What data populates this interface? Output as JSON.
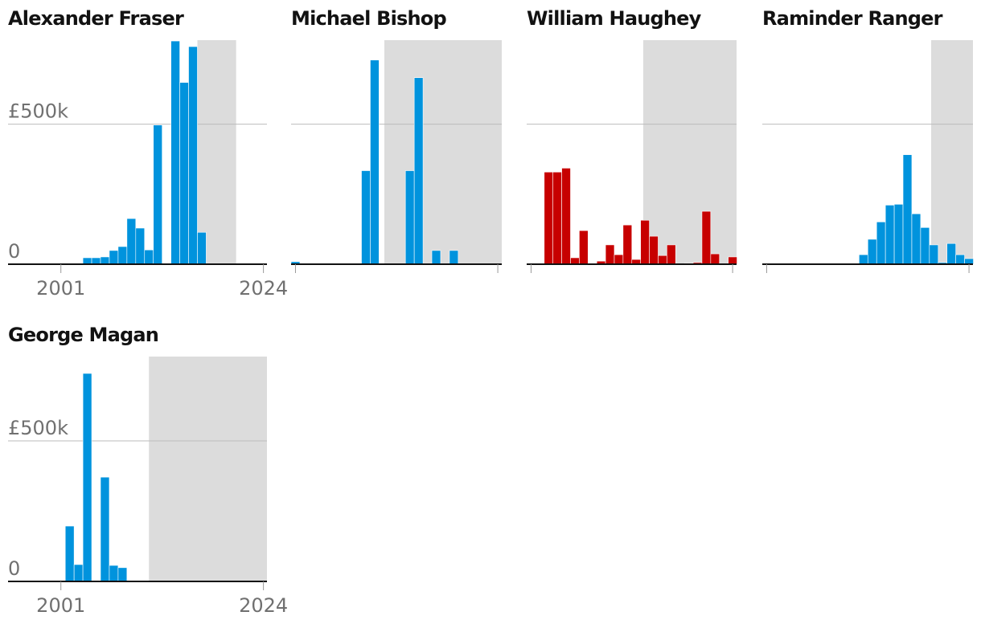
{
  "chart_data": [
    {
      "type": "bar",
      "title": "Alexander Fraser",
      "color": "#0093dd",
      "shade_color": "#dcdcdc",
      "x": [
        2001,
        2002,
        2003,
        2004,
        2005,
        2006,
        2007,
        2008,
        2009,
        2010,
        2011,
        2012,
        2013,
        2014,
        2015,
        2016,
        2017,
        2018,
        2019,
        2020,
        2021,
        2022,
        2023,
        2024
      ],
      "values": [
        0,
        0,
        0,
        23000,
        23000,
        26000,
        49000,
        63000,
        163000,
        129000,
        51000,
        497000,
        0,
        797000,
        649000,
        777000,
        114000,
        0,
        0,
        0,
        0,
        0,
        0,
        0
      ],
      "shaded_range": [
        2016.5,
        2020.9
      ],
      "xlim": [
        1995,
        2024.4
      ],
      "xticks": [
        2001,
        2024
      ],
      "ylim": [
        0,
        800000
      ],
      "yticks": [
        0,
        {
          "value": 500000,
          "label": "£500k"
        }
      ],
      "tick_labels": true,
      "grid": true
    },
    {
      "type": "bar",
      "title": "Michael Bishop",
      "color": "#0093dd",
      "shade_color": "#dcdcdc",
      "x": [
        2001,
        2002,
        2003,
        2004,
        2005,
        2006,
        2007,
        2008,
        2009,
        2010,
        2011,
        2012,
        2013,
        2014,
        2015,
        2016,
        2017,
        2018,
        2019,
        2020,
        2021,
        2022,
        2023,
        2024
      ],
      "values": [
        9000,
        0,
        0,
        0,
        3000,
        0,
        0,
        3000,
        334000,
        729000,
        0,
        0,
        0,
        334000,
        666000,
        0,
        49000,
        0,
        49000,
        0,
        0,
        0,
        0,
        0
      ],
      "shaded_range": [
        2011.1,
        2024.45
      ],
      "xlim": [
        2000.5,
        2024.45
      ],
      "xticks": [
        2001,
        2024
      ],
      "ylim": [
        0,
        800000
      ],
      "yticks": [
        0,
        500000
      ],
      "tick_labels": false,
      "grid": true
    },
    {
      "type": "bar",
      "title": "William Haughey",
      "color": "#c70000",
      "shade_color": "#dcdcdc",
      "x": [
        2001,
        2002,
        2003,
        2004,
        2005,
        2006,
        2007,
        2008,
        2009,
        2010,
        2011,
        2012,
        2013,
        2014,
        2015,
        2016,
        2017,
        2018,
        2019,
        2020,
        2021,
        2022,
        2023,
        2024
      ],
      "values": [
        0,
        0,
        329000,
        329000,
        343000,
        23000,
        120000,
        0,
        11000,
        69000,
        34000,
        140000,
        17000,
        157000,
        100000,
        31000,
        69000,
        0,
        3000,
        6000,
        189000,
        37000,
        0,
        26000
      ],
      "shaded_range": [
        2013.8,
        2024.45
      ],
      "xlim": [
        2000.5,
        2024.45
      ],
      "xticks": [
        2001,
        2024
      ],
      "ylim": [
        0,
        800000
      ],
      "yticks": [
        0,
        500000
      ],
      "tick_labels": false,
      "grid": true
    },
    {
      "type": "bar",
      "title": "Raminder Ranger",
      "color": "#0093dd",
      "shade_color": "#dcdcdc",
      "x": [
        2001,
        2002,
        2003,
        2004,
        2005,
        2006,
        2007,
        2008,
        2009,
        2010,
        2011,
        2012,
        2013,
        2014,
        2015,
        2016,
        2017,
        2018,
        2019,
        2020,
        2021,
        2022,
        2023,
        2024
      ],
      "values": [
        0,
        0,
        0,
        0,
        0,
        0,
        0,
        0,
        2000,
        0,
        0,
        34000,
        89000,
        151000,
        211000,
        214000,
        391000,
        180000,
        131000,
        69000,
        6000,
        74000,
        34000,
        20000
      ],
      "shaded_range": [
        2019.7,
        2024.45
      ],
      "xlim": [
        2000.5,
        2024.45
      ],
      "xticks": [
        2001,
        2024
      ],
      "ylim": [
        0,
        800000
      ],
      "yticks": [
        0,
        500000
      ],
      "tick_labels": false,
      "grid": true
    },
    {
      "type": "bar",
      "title": "George Magan",
      "color": "#0093dd",
      "shade_color": "#dcdcdc",
      "x": [
        2001,
        2002,
        2003,
        2004,
        2005,
        2006,
        2007,
        2008,
        2009,
        2010,
        2011,
        2012,
        2013,
        2014,
        2015,
        2016,
        2017,
        2018,
        2019,
        2020,
        2021,
        2022,
        2023,
        2024
      ],
      "values": [
        0,
        197000,
        60000,
        740000,
        0,
        371000,
        57000,
        49000,
        0,
        0,
        0,
        0,
        0,
        0,
        0,
        0,
        0,
        0,
        0,
        0,
        0,
        0,
        0,
        0
      ],
      "shaded_range": [
        2011.0,
        2024.4
      ],
      "xlim": [
        1995,
        2024.4
      ],
      "xticks": [
        2001,
        2024
      ],
      "ylim": [
        0,
        800000
      ],
      "yticks": [
        0,
        {
          "value": 500000,
          "label": "£500k"
        }
      ],
      "tick_labels": true,
      "grid": true
    }
  ]
}
